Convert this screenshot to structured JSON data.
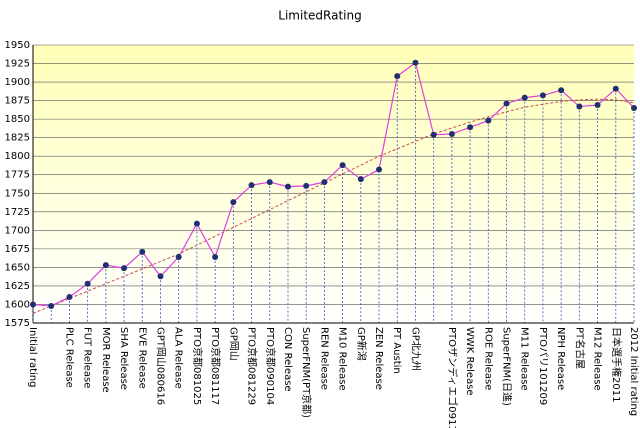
{
  "chart_data": {
    "type": "line",
    "title": "LimitedRating",
    "categories": [
      "Initial rating",
      null,
      "PLC Release",
      "FUT Release",
      "MOR Release",
      "SHA Release",
      "EVE Release",
      "GPT岡山080616",
      "ALA Release",
      "PTO京都081025",
      "PTO京都081117",
      "GP岡山",
      "PTO京都081229",
      "PTO京都090104",
      "CON Release",
      "SuperFNM(PT京都)",
      "REN Release",
      "M10 Release",
      "GP新潟",
      "ZEN Release",
      "PT Austin",
      "GP北九州",
      null,
      "PTOザンディエゴ091115",
      "WWK Release",
      "ROE Release",
      "SuperFNM(日進)",
      "M11 Release",
      "PTOパリ101209",
      "NPH Release",
      "PT名古屋",
      "M12 Release",
      "日本選手権2011",
      "2012 Initial rating"
    ],
    "series": [
      {
        "color": "#e040e0",
        "marker_color": "#1f2f6f",
        "values": [
          1600,
          1598,
          1610,
          1628,
          1653,
          1649,
          1671,
          1638,
          1664,
          1709,
          1664,
          1738,
          1761,
          1765,
          1759,
          1760,
          1765,
          1788,
          1769,
          1782,
          1908,
          1926,
          1829,
          1830,
          1839,
          1848,
          1871,
          1879,
          1882,
          1889,
          1867,
          1869,
          1891,
          1865
        ]
      }
    ],
    "trend": {
      "color": "#c0504d",
      "values": [
        1588,
        1598,
        1608,
        1618,
        1628,
        1638,
        1648,
        1658,
        1668,
        1680,
        1692,
        1704,
        1716,
        1728,
        1740,
        1752,
        1764,
        1776,
        1788,
        1800,
        1810,
        1820,
        1830,
        1838,
        1846,
        1853,
        1860,
        1866,
        1870,
        1874,
        1876,
        1877,
        1876,
        1872
      ]
    },
    "ylim": [
      1575,
      1950
    ],
    "yticks": [
      1575,
      1600,
      1625,
      1650,
      1675,
      1700,
      1725,
      1750,
      1775,
      1800,
      1825,
      1850,
      1875,
      1900,
      1925,
      1950
    ],
    "grid": true
  }
}
